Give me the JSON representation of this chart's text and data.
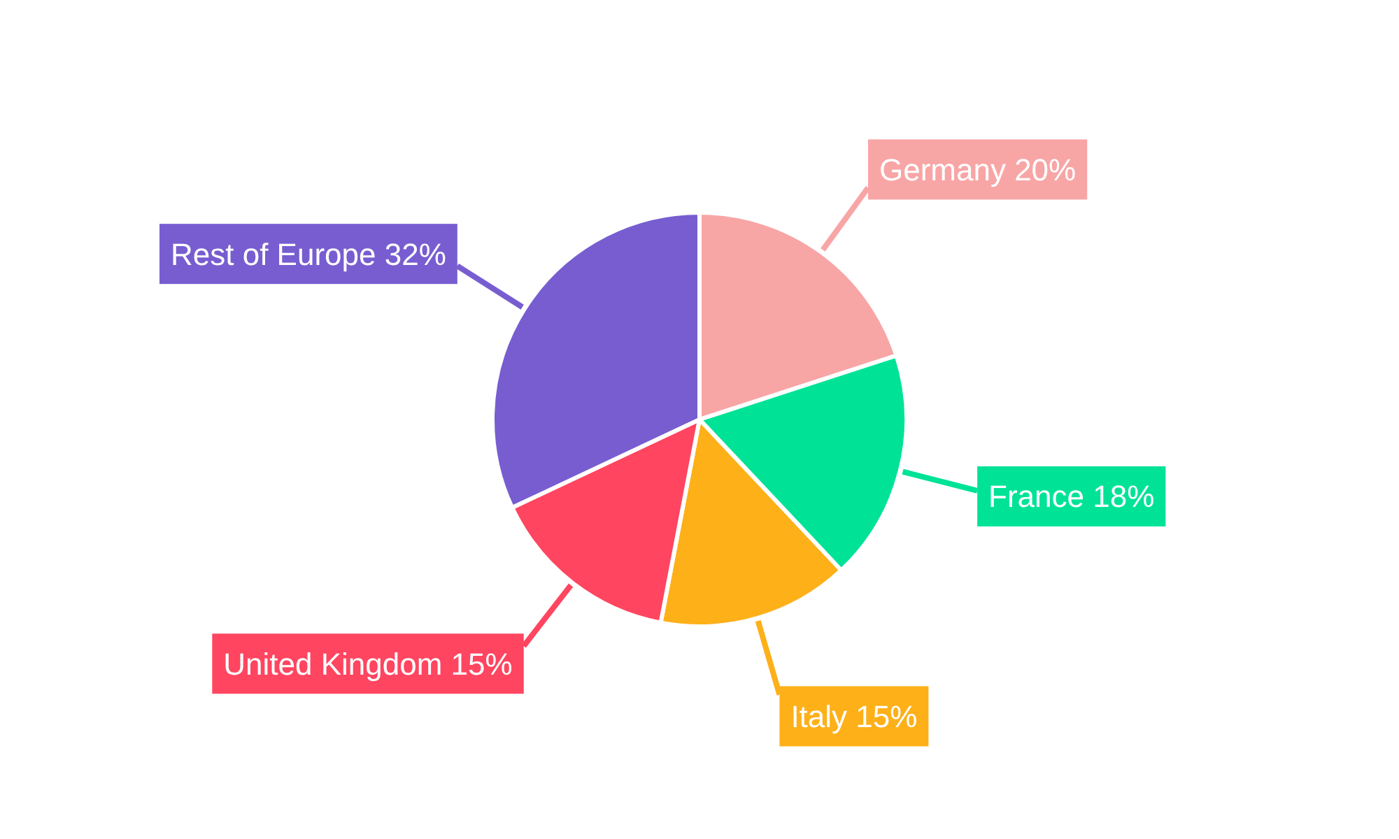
{
  "chart_data": {
    "type": "pie",
    "categories": [
      "Germany",
      "France",
      "Italy",
      "United Kingdom",
      "Rest of Europe"
    ],
    "values": [
      20,
      18,
      15,
      15,
      32
    ],
    "value_labels": [
      "20%",
      "18%",
      "15%",
      "15%",
      "32%"
    ],
    "colors": [
      "#f8a5a6",
      "#00e396",
      "#feb019",
      "#ff4560",
      "#775dd0"
    ]
  }
}
